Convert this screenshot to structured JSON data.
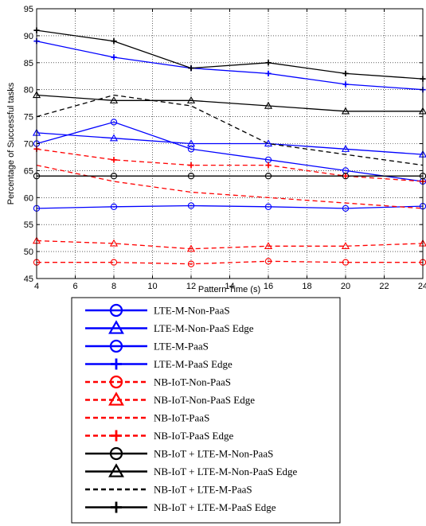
{
  "chart_data": {
    "type": "line",
    "title": "",
    "xlabel": "Pattern Time (s)",
    "ylabel": "Percentage of Successful tasks",
    "xlim": [
      4,
      24
    ],
    "ylim": [
      45,
      95
    ],
    "xticks": [
      4,
      6,
      8,
      10,
      12,
      14,
      16,
      18,
      20,
      22,
      24
    ],
    "yticks": [
      45,
      50,
      55,
      60,
      65,
      70,
      75,
      80,
      85,
      90,
      95
    ],
    "grid": true,
    "legend_position": "below plot",
    "x": [
      4,
      8,
      12,
      16,
      20,
      24
    ],
    "series": [
      {
        "name": "LTE-M-Non-PaaS",
        "color": "#0000ff",
        "dash": "solid",
        "marker": "circle",
        "values": [
          58,
          58.3,
          58.5,
          58.3,
          58,
          58.4
        ]
      },
      {
        "name": "LTE-M-Non-PaaS Edge",
        "color": "#0000ff",
        "dash": "solid",
        "marker": "triangle",
        "values": [
          72,
          71,
          70,
          70,
          69,
          68
        ]
      },
      {
        "name": "LTE-M-PaaS",
        "color": "#0000ff",
        "dash": "solid",
        "marker": "circle",
        "values": [
          70,
          74,
          69,
          67,
          65,
          63
        ]
      },
      {
        "name": "LTE-M-PaaS Edge",
        "color": "#0000ff",
        "dash": "solid",
        "marker": "plus",
        "values": [
          89,
          86,
          84,
          83,
          81,
          80
        ]
      },
      {
        "name": "NB-IoT-Non-PaaS",
        "color": "#ff0000",
        "dash": "dashed",
        "marker": "circle",
        "values": [
          48,
          48,
          47.7,
          48.2,
          48,
          48
        ]
      },
      {
        "name": "NB-IoT-Non-PaaS Edge",
        "color": "#ff0000",
        "dash": "dashed",
        "marker": "triangle",
        "values": [
          52,
          51.5,
          50.5,
          51,
          51,
          51.5
        ]
      },
      {
        "name": "NB-IoT-PaaS",
        "color": "#ff0000",
        "dash": "dashed",
        "marker": "none",
        "values": [
          66,
          63,
          61,
          60,
          59,
          58
        ]
      },
      {
        "name": "NB-IoT-PaaS Edge",
        "color": "#ff0000",
        "dash": "dashed",
        "marker": "plus",
        "values": [
          69,
          67,
          66,
          66,
          64,
          63
        ]
      },
      {
        "name": "NB-IoT + LTE-M-Non-PaaS",
        "color": "#000000",
        "dash": "solid",
        "marker": "circle",
        "values": [
          64,
          64,
          64,
          64,
          64,
          64
        ]
      },
      {
        "name": "NB-IoT + LTE-M-Non-PaaS Edge",
        "color": "#000000",
        "dash": "solid",
        "marker": "triangle",
        "values": [
          79,
          78,
          78,
          77,
          76,
          76
        ]
      },
      {
        "name": "NB-IoT + LTE-M-PaaS",
        "color": "#000000",
        "dash": "dashed",
        "marker": "none",
        "values": [
          75,
          79,
          77,
          70,
          68,
          66
        ]
      },
      {
        "name": "NB-IoT + LTE-M-PaaS Edge",
        "color": "#000000",
        "dash": "solid",
        "marker": "plus",
        "values": [
          91,
          89,
          84,
          85,
          83,
          82
        ]
      }
    ]
  }
}
